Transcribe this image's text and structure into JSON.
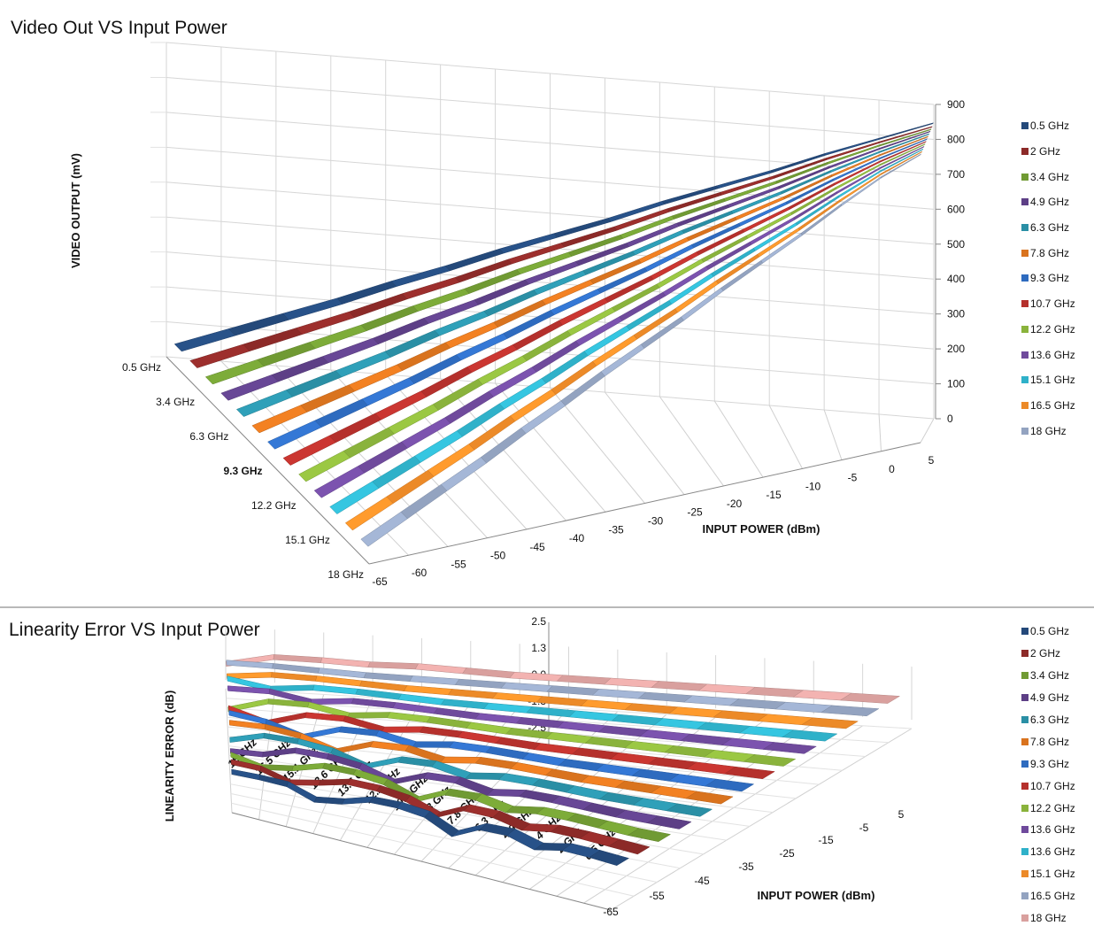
{
  "chart_data": [
    {
      "type": "line",
      "title": "Video Out VS Input Power",
      "xlabel": "INPUT POWER (dBm)",
      "ylabel": "VIDEO OUTPUT (mV)",
      "zlabel": "",
      "x": [
        -65,
        -60,
        -55,
        -50,
        -45,
        -40,
        -35,
        -30,
        -25,
        -20,
        -15,
        -10,
        -5,
        0,
        5
      ],
      "ylim": [
        0,
        900
      ],
      "yticks": [
        "900",
        "800",
        "700",
        "600",
        "500",
        "400",
        "300",
        "200",
        "100",
        "0"
      ],
      "xticks": [
        "-65",
        "-60",
        "-55",
        "-50",
        "-45",
        "-40",
        "-35",
        "-30",
        "-25",
        "-20",
        "-15",
        "-10",
        "-5",
        "0",
        "5"
      ],
      "depth_ticks": [
        "0.5 GHz",
        "3.4 GHz",
        "6.3 GHz",
        "9.3 GHz",
        "12.2 GHz",
        "15.1 GHz",
        "18 GHz"
      ],
      "grid": true,
      "legend_position": "right",
      "series": [
        {
          "name": "0.5 GHz",
          "color": "#24497a",
          "values": [
            60,
            115,
            170,
            225,
            285,
            340,
            400,
            455,
            510,
            570,
            625,
            680,
            740,
            795,
            850
          ]
        },
        {
          "name": "2 GHz",
          "color": "#8c2a28",
          "values": [
            58,
            113,
            168,
            223,
            283,
            338,
            398,
            453,
            508,
            568,
            623,
            678,
            738,
            793,
            845
          ]
        },
        {
          "name": "3.4 GHz",
          "color": "#709a33",
          "values": [
            57,
            112,
            167,
            222,
            282,
            337,
            397,
            452,
            507,
            567,
            622,
            677,
            737,
            792,
            843
          ]
        },
        {
          "name": "4.9 GHz",
          "color": "#5d3f86",
          "values": [
            56,
            111,
            166,
            221,
            281,
            336,
            396,
            451,
            506,
            566,
            621,
            676,
            736,
            791,
            842
          ]
        },
        {
          "name": "6.3 GHz",
          "color": "#2a8fa5",
          "values": [
            55,
            110,
            165,
            220,
            280,
            335,
            395,
            450,
            505,
            565,
            620,
            675,
            735,
            790,
            840
          ]
        },
        {
          "name": "7.8 GHz",
          "color": "#d9731e",
          "values": [
            54,
            109,
            164,
            219,
            279,
            334,
            394,
            449,
            504,
            564,
            619,
            674,
            734,
            789,
            838
          ]
        },
        {
          "name": "9.3 GHz",
          "color": "#2e6bbf",
          "values": [
            53,
            108,
            163,
            218,
            278,
            333,
            393,
            448,
            503,
            563,
            618,
            673,
            733,
            788,
            836
          ]
        },
        {
          "name": "10.7 GHz",
          "color": "#b5302c",
          "values": [
            52,
            107,
            162,
            217,
            277,
            332,
            392,
            447,
            502,
            562,
            617,
            672,
            732,
            787,
            834
          ]
        },
        {
          "name": "12.2 GHz",
          "color": "#8ab33c",
          "values": [
            51,
            106,
            161,
            216,
            276,
            331,
            391,
            446,
            501,
            561,
            616,
            671,
            731,
            786,
            832
          ]
        },
        {
          "name": "13.6 GHz",
          "color": "#6f4a9c",
          "values": [
            50,
            105,
            160,
            215,
            275,
            330,
            390,
            445,
            500,
            560,
            615,
            670,
            730,
            785,
            830
          ]
        },
        {
          "name": "15.1 GHz",
          "color": "#2fb1c9",
          "values": [
            49,
            104,
            159,
            214,
            274,
            329,
            389,
            444,
            499,
            559,
            614,
            669,
            729,
            784,
            828
          ]
        },
        {
          "name": "16.5 GHz",
          "color": "#ec8a28",
          "values": [
            48,
            103,
            158,
            213,
            273,
            328,
            388,
            443,
            498,
            558,
            613,
            668,
            728,
            783,
            826
          ]
        },
        {
          "name": "18 GHz",
          "color": "#93a3c0",
          "values": [
            47,
            102,
            157,
            212,
            272,
            327,
            387,
            442,
            497,
            557,
            612,
            667,
            727,
            782,
            824
          ]
        }
      ]
    },
    {
      "type": "line",
      "title": "Linearity Error VS Input Power",
      "xlabel": "INPUT POWER (dBm)",
      "ylabel": "LINEARITY ERROR (dB)",
      "x": [
        -65,
        -60,
        -55,
        -50,
        -45,
        -40,
        -35,
        -30,
        -25,
        -20,
        -15,
        -10,
        -5,
        0,
        5
      ],
      "ylim": [
        -2.5,
        2.5
      ],
      "yticks": [
        "2.5",
        "1.3",
        "0.0",
        "-1.3",
        "-2.5"
      ],
      "xticks": [
        "-65",
        "-55",
        "-45",
        "-35",
        "-25",
        "-15",
        "-5",
        "5"
      ],
      "depth_ticks": [
        "18 GHz",
        "16.5 GHz",
        "15.1 GHz",
        "13.6 GHz",
        "13.6 GHz",
        "12.2 GHz",
        "10.7 GHz",
        "9.3 GHz",
        "7.8 GHz",
        "6.3 GHz",
        "4.9 GHz",
        "3.4 GHz",
        "2 GHz",
        "0.5 GHz"
      ],
      "grid": true,
      "legend_position": "right",
      "series": [
        {
          "name": "0.5 GHz",
          "color": "#24497a",
          "values": [
            -0.3,
            -0.2,
            -0.2,
            -0.9,
            -0.5,
            0.2,
            0.3,
            0.1,
            -0.9,
            0.2,
            0.3,
            -0.3,
            0.2,
            0.2,
            0.1
          ]
        },
        {
          "name": "2 GHz",
          "color": "#8c2a28",
          "values": [
            -0.2,
            -0.2,
            -0.8,
            -0.3,
            0.3,
            0.3,
            0.0,
            -0.8,
            0.3,
            0.3,
            -0.2,
            0.2,
            0.2,
            0.1,
            0.0
          ]
        },
        {
          "name": "3.4 GHz",
          "color": "#709a33",
          "values": [
            -0.3,
            -0.8,
            -0.4,
            0.3,
            0.3,
            0.0,
            -0.9,
            0.2,
            0.3,
            -0.2,
            0.2,
            0.2,
            0.1,
            0.0,
            0.0
          ]
        },
        {
          "name": "4.9 GHz",
          "color": "#5d3f86",
          "values": [
            -0.7,
            -0.5,
            0.3,
            0.3,
            0.0,
            -0.8,
            0.2,
            0.3,
            -0.2,
            0.2,
            0.2,
            0.1,
            0.0,
            0.0,
            0.0
          ]
        },
        {
          "name": "6.3 GHz",
          "color": "#2a8fa5",
          "values": [
            -0.5,
            0.3,
            0.3,
            0.0,
            -0.8,
            0.2,
            0.3,
            -0.2,
            0.2,
            0.2,
            0.1,
            0.0,
            0.0,
            0.0,
            0.0
          ]
        },
        {
          "name": "7.8 GHz",
          "color": "#d9731e",
          "values": [
            0.2,
            0.3,
            0.0,
            -0.8,
            0.2,
            0.3,
            -0.2,
            0.2,
            0.2,
            0.1,
            0.0,
            0.0,
            0.0,
            0.0,
            0.0
          ]
        },
        {
          "name": "9.3 GHz",
          "color": "#2e6bbf",
          "values": [
            0.3,
            0.0,
            -0.8,
            0.2,
            0.3,
            -0.2,
            0.2,
            0.2,
            0.1,
            0.0,
            0.0,
            0.0,
            0.0,
            0.0,
            0.0
          ]
        },
        {
          "name": "10.7 GHz",
          "color": "#b5302c",
          "values": [
            0.0,
            -0.8,
            0.2,
            0.3,
            -0.2,
            0.2,
            0.2,
            0.1,
            0.0,
            0.0,
            0.0,
            0.0,
            0.0,
            0.0,
            0.0
          ]
        },
        {
          "name": "12.2 GHz",
          "color": "#8ab33c",
          "values": [
            -0.8,
            0.2,
            0.3,
            -0.2,
            0.2,
            0.2,
            0.1,
            0.0,
            0.0,
            0.0,
            0.0,
            0.0,
            0.0,
            0.0,
            0.0
          ]
        },
        {
          "name": "13.6 GHz",
          "color": "#6f4a9c",
          "values": [
            0.2,
            0.3,
            -0.2,
            0.2,
            0.2,
            0.1,
            0.0,
            0.0,
            0.0,
            0.0,
            0.0,
            0.0,
            0.0,
            0.0,
            0.0
          ]
        },
        {
          "name": "13.6 GHz",
          "color": "#2fb1c9",
          "values": [
            0.3,
            -0.2,
            0.2,
            0.2,
            0.1,
            0.0,
            0.0,
            0.0,
            0.0,
            0.0,
            0.0,
            0.0,
            0.0,
            0.0,
            0.0
          ]
        },
        {
          "name": "15.1 GHz",
          "color": "#ec8a28",
          "values": [
            -0.2,
            0.2,
            0.2,
            0.1,
            0.0,
            0.0,
            0.0,
            0.0,
            0.0,
            0.0,
            0.0,
            0.0,
            0.0,
            0.0,
            0.0
          ]
        },
        {
          "name": "16.5 GHz",
          "color": "#93a3c0",
          "values": [
            0.2,
            0.2,
            0.1,
            0.0,
            0.0,
            0.0,
            0.0,
            0.0,
            0.0,
            0.0,
            0.0,
            0.0,
            0.0,
            0.0,
            0.0
          ]
        },
        {
          "name": "18 GHz",
          "color": "#d9a09e",
          "values": [
            -0.6,
            0.2,
            0.2,
            0.1,
            0.2,
            0.1,
            0.0,
            0.0,
            0.0,
            0.0,
            0.0,
            0.0,
            0.0,
            0.0,
            0.0
          ]
        }
      ]
    }
  ]
}
